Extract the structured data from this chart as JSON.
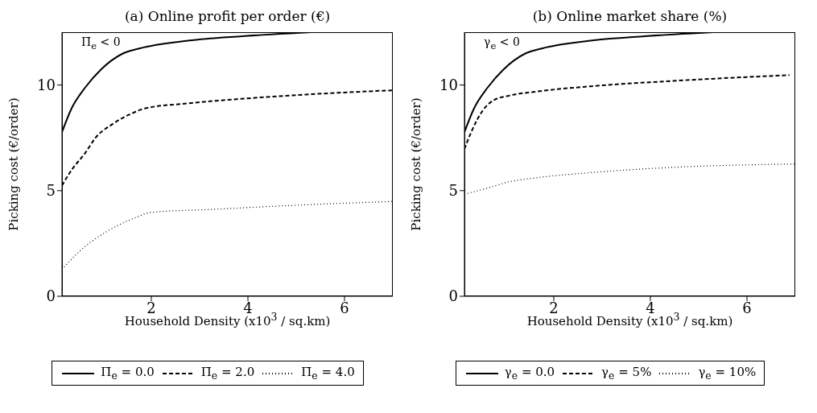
{
  "chart_data": [
    {
      "type": "line",
      "title": "(a) Online profit per order (€)",
      "xlabel": "Household Density (x10$^{3}$ / sq.km)",
      "ylabel": "Picking cost (€/order)",
      "annotations": [
        "Π̄$_{e}$ < 0"
      ],
      "xlim": [
        0.15,
        7
      ],
      "xticks": [
        2,
        4,
        6
      ],
      "ylim": [
        0,
        12.5
      ],
      "yticks": [
        0,
        5,
        10
      ],
      "grid": false,
      "legend": "bottom",
      "series": [
        {
          "name": "Π̄$_{e}$ = 0.0",
          "color": "#000000",
          "line_style": "solid",
          "x": [
            0.15,
            0.35,
            0.63,
            0.96,
            1.41,
            1.75,
            2.76,
            3.88,
            5.31
          ],
          "values": [
            7.77,
            8.9,
            9.88,
            10.74,
            11.49,
            11.73,
            12.1,
            12.31,
            12.5
          ]
        },
        {
          "name": "Π̄$_{e}$ = 2.0",
          "color": "#000000",
          "line_style": "dashed",
          "x": [
            0.15,
            0.35,
            0.63,
            0.85,
            1.19,
            1.58,
            1.86,
            2.76,
            4.44,
            6.79,
            7
          ],
          "values": [
            5.24,
            5.98,
            6.78,
            7.52,
            8.14,
            8.64,
            8.89,
            9.13,
            9.44,
            9.73,
            9.75
          ]
        },
        {
          "name": "Π̄$_{e}$ = 4.0",
          "color": "#000000",
          "line_style": "dotted",
          "x": [
            0.15,
            0.52,
            1.08,
            1.64,
            2,
            3.32,
            5,
            7
          ],
          "values": [
            1.27,
            2.14,
            3.07,
            3.69,
            3.97,
            4.12,
            4.31,
            4.49
          ]
        }
      ]
    },
    {
      "type": "line",
      "title": "(b) Online market share (%)",
      "xlabel": "Household Density (x10$^{3}$ / sq.km)",
      "ylabel": "Picking cost (€/order)",
      "annotations": [
        "γ$_{e}$ < 0"
      ],
      "xlim": [
        0.15,
        7
      ],
      "xticks": [
        2,
        4,
        6
      ],
      "ylim": [
        0,
        12.5
      ],
      "yticks": [
        0,
        5,
        10
      ],
      "grid": false,
      "legend": "bottom",
      "series": [
        {
          "name": "γ$_{e}$ = 0.0",
          "color": "#000000",
          "line_style": "solid",
          "x": [
            0.15,
            0.35,
            0.63,
            0.96,
            1.41,
            1.75,
            2.76,
            3.88,
            5.31
          ],
          "values": [
            7.77,
            8.9,
            9.88,
            10.74,
            11.49,
            11.73,
            12.1,
            12.31,
            12.5
          ]
        },
        {
          "name": "γ$_{e}$ = 5%",
          "color": "#000000",
          "line_style": "dashed",
          "x": [
            0.15,
            0.29,
            0.52,
            0.74,
            1.08,
            1.64,
            2.76,
            4.44,
            6.88
          ],
          "values": [
            6.97,
            7.77,
            8.76,
            9.26,
            9.5,
            9.69,
            9.94,
            10.19,
            10.47
          ]
        },
        {
          "name": "γ$_{e}$ = 10%",
          "color": "#000000",
          "line_style": "dotted",
          "x": [
            0.15,
            0.52,
            1.08,
            1.64,
            2.76,
            4.44,
            7
          ],
          "values": [
            4.83,
            5.05,
            5.42,
            5.61,
            5.85,
            6.1,
            6.26
          ]
        }
      ]
    }
  ]
}
